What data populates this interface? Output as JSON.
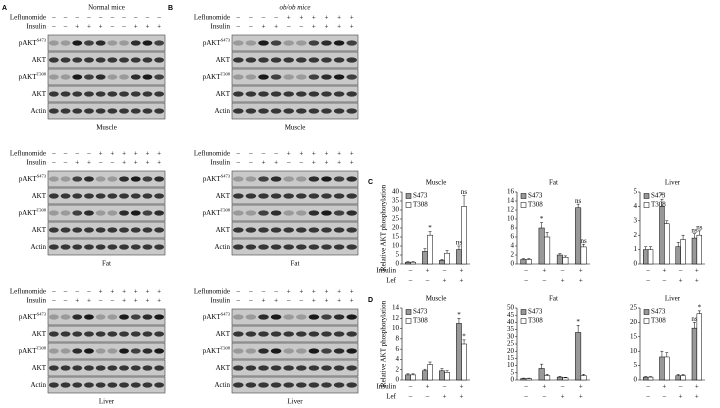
{
  "blots": [
    {
      "letter": "A",
      "title": "Normal mice",
      "rows": [
        {
          "text": "pAKT",
          "sup": "S473"
        },
        {
          "text": "AKT"
        },
        {
          "text": "pAKT",
          "sup": "T308"
        },
        {
          "text": "AKT"
        },
        {
          "text": "Actin"
        }
      ],
      "groups": [
        {
          "tissue": "Muscle",
          "treatments": [
            {
              "label": "Leflunomide",
              "signs": [
                "–",
                "–",
                "–",
                "–",
                "–",
                "–",
                "–",
                "–",
                "–",
                "–"
              ]
            },
            {
              "label": "Insulin",
              "signs": [
                "–",
                "–",
                "+",
                "+",
                "+",
                "–",
                "–",
                "+",
                "+",
                "+"
              ]
            }
          ]
        },
        {
          "tissue": "Fat",
          "treatments": [
            {
              "label": "Leflunomide",
              "signs": [
                "–",
                "–",
                "–",
                "–",
                "+",
                "+",
                "+",
                "+",
                "+",
                "+"
              ]
            },
            {
              "label": "Insulin",
              "signs": [
                "–",
                "–",
                "+",
                "+",
                "–",
                "–",
                "+",
                "+",
                "+",
                "+"
              ]
            }
          ]
        },
        {
          "tissue": "Liver",
          "treatments": [
            {
              "label": "Leflunomide",
              "signs": [
                "–",
                "–",
                "–",
                "–",
                "+",
                "+",
                "+",
                "+",
                "+",
                "+"
              ]
            },
            {
              "label": "Insulin",
              "signs": [
                "–",
                "–",
                "+",
                "+",
                "–",
                "–",
                "+",
                "+",
                "+",
                "+"
              ]
            }
          ]
        }
      ]
    },
    {
      "letter": "B",
      "title": "ob/ob  mice",
      "rows": [
        {
          "text": "pAKT",
          "sup": "S473"
        },
        {
          "text": "AKT"
        },
        {
          "text": "pAKT",
          "sup": "T308"
        },
        {
          "text": "AKT"
        },
        {
          "text": "Actin"
        }
      ],
      "groups": [
        {
          "tissue": "Muscle",
          "treatments": [
            {
              "label": "Leflunomide",
              "signs": [
                "–",
                "–",
                "–",
                "–",
                "+",
                "+",
                "+",
                "+",
                "+",
                "+"
              ]
            },
            {
              "label": "Insulin",
              "signs": [
                "–",
                "–",
                "+",
                "+",
                "–",
                "–",
                "+",
                "+",
                "+",
                "+"
              ]
            }
          ]
        },
        {
          "tissue": "Fat",
          "treatments": [
            {
              "label": "Leflunomide",
              "signs": [
                "–",
                "–",
                "–",
                "–",
                "+",
                "+",
                "+",
                "+",
                "+",
                "+"
              ]
            },
            {
              "label": "Insulin",
              "signs": [
                "–",
                "–",
                "+",
                "+",
                "–",
                "–",
                "+",
                "+",
                "+",
                "+"
              ]
            }
          ]
        },
        {
          "tissue": "Liver",
          "treatments": [
            {
              "label": "Leflunomide",
              "signs": [
                "–",
                "–",
                "–",
                "–",
                "+",
                "+",
                "+",
                "+",
                "+",
                "+"
              ]
            },
            {
              "label": "Insulin",
              "signs": [
                "–",
                "–",
                "+",
                "+",
                "–",
                "–",
                "+",
                "+",
                "+",
                "+"
              ]
            }
          ]
        }
      ]
    }
  ],
  "chart_panels": [
    {
      "letter": "C"
    },
    {
      "letter": "D"
    }
  ],
  "chart_rows": {
    "labels": [
      "Insulin",
      "Lef"
    ],
    "signs": [
      [
        "–",
        "+",
        "–",
        "+"
      ],
      [
        "–",
        "–",
        "+",
        "+"
      ]
    ]
  },
  "chart_data": [
    {
      "type": "bar",
      "title": "Muscle",
      "ylabel": "Relative AKT phosphorylation",
      "ylim": [
        0,
        40
      ],
      "yticks": [
        0,
        5,
        10,
        15,
        20,
        25,
        30,
        35,
        40
      ],
      "series": [
        {
          "name": "S473",
          "color": "#999999",
          "values": [
            1,
            7,
            2,
            8
          ],
          "errors": [
            0.3,
            1.5,
            0.5,
            2
          ],
          "annotations": [
            null,
            null,
            null,
            "ns"
          ]
        },
        {
          "name": "T308",
          "color": "#ffffff",
          "values": [
            1,
            16,
            6,
            32
          ],
          "errors": [
            0.3,
            2,
            1.5,
            6
          ],
          "annotations": [
            null,
            "*",
            null,
            "ns"
          ]
        }
      ]
    },
    {
      "type": "bar",
      "title": "Fat",
      "ylim": [
        0,
        16
      ],
      "yticks": [
        0,
        2,
        4,
        6,
        8,
        10,
        12,
        14,
        16
      ],
      "series": [
        {
          "name": "S473",
          "color": "#999999",
          "values": [
            1,
            8,
            2,
            12.5
          ],
          "errors": [
            0.2,
            1.2,
            0.3,
            0.8
          ],
          "annotations": [
            null,
            "*",
            null,
            "ns"
          ]
        },
        {
          "name": "T308",
          "color": "#ffffff",
          "values": [
            1,
            6,
            1.5,
            3.8
          ],
          "errors": [
            0.2,
            1,
            0.3,
            0.6
          ],
          "annotations": [
            null,
            null,
            null,
            "ns"
          ]
        }
      ]
    },
    {
      "type": "bar",
      "title": "Liver",
      "ylim": [
        0,
        5
      ],
      "yticks": [
        0,
        1,
        2,
        3,
        4,
        5
      ],
      "series": [
        {
          "name": "S473",
          "color": "#999999",
          "values": [
            1,
            4,
            1.2,
            1.8
          ],
          "errors": [
            0.2,
            0.5,
            0.3,
            0.3
          ],
          "annotations": [
            null,
            "*",
            null,
            "ns"
          ]
        },
        {
          "name": "T308",
          "color": "#ffffff",
          "values": [
            1,
            2.8,
            1.7,
            2
          ],
          "errors": [
            0.2,
            0.2,
            0.3,
            0.3
          ],
          "annotations": [
            null,
            null,
            null,
            "ns"
          ]
        }
      ]
    },
    {
      "type": "bar",
      "title": "Muscle",
      "ylabel": "Relative AKT phosphorylation",
      "ylim": [
        0,
        14
      ],
      "yticks": [
        0,
        2,
        4,
        6,
        8,
        10,
        12,
        14
      ],
      "series": [
        {
          "name": "S473",
          "color": "#999999",
          "values": [
            1,
            1.8,
            1.8,
            11
          ],
          "errors": [
            0.2,
            0.3,
            0.4,
            1
          ],
          "annotations": [
            null,
            null,
            null,
            "*"
          ]
        },
        {
          "name": "T308",
          "color": "#ffffff",
          "values": [
            1,
            3,
            1.5,
            7
          ],
          "errors": [
            0.2,
            0.5,
            0.3,
            0.8
          ],
          "annotations": [
            null,
            null,
            null,
            "*"
          ]
        }
      ]
    },
    {
      "type": "bar",
      "title": "Fat",
      "ylim": [
        0,
        50
      ],
      "yticks": [
        0,
        5,
        10,
        15,
        20,
        25,
        30,
        35,
        40,
        45,
        50
      ],
      "series": [
        {
          "name": "S473",
          "color": "#999999",
          "values": [
            1,
            8,
            2,
            33
          ],
          "errors": [
            0.3,
            3,
            0.5,
            5
          ],
          "annotations": [
            null,
            null,
            null,
            "*"
          ]
        },
        {
          "name": "T308",
          "color": "#ffffff",
          "values": [
            1,
            3,
            1.5,
            3
          ],
          "errors": [
            0.3,
            1,
            0.4,
            1
          ],
          "annotations": [
            null,
            null,
            null,
            null
          ]
        }
      ]
    },
    {
      "type": "bar",
      "title": "Liver",
      "ylim": [
        0,
        25
      ],
      "yticks": [
        0,
        5,
        10,
        15,
        20,
        25
      ],
      "series": [
        {
          "name": "S473",
          "color": "#999999",
          "values": [
            1,
            8,
            1.5,
            18
          ],
          "errors": [
            0.2,
            2,
            0.4,
            2
          ],
          "annotations": [
            null,
            null,
            null,
            "ns"
          ]
        },
        {
          "name": "T308",
          "color": "#ffffff",
          "values": [
            1,
            8,
            1.5,
            23
          ],
          "errors": [
            0.2,
            1.5,
            0.4,
            1
          ],
          "annotations": [
            null,
            null,
            null,
            "*"
          ]
        }
      ]
    }
  ]
}
